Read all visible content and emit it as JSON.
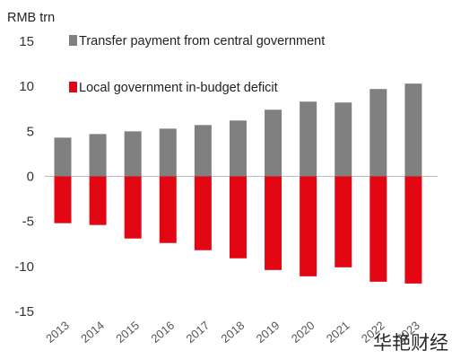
{
  "chart_data": {
    "type": "bar",
    "stacked": true,
    "unit_label": "RMB trn",
    "categories": [
      "2013",
      "2014",
      "2015",
      "2016",
      "2017",
      "2018",
      "2019",
      "2020",
      "2021",
      "2022",
      "2023"
    ],
    "series": [
      {
        "name": "Transfer payment from central government",
        "color": "#808080",
        "values": [
          4.3,
          4.7,
          5.0,
          5.3,
          5.7,
          6.2,
          7.4,
          8.3,
          8.2,
          9.7,
          10.3
        ]
      },
      {
        "name": "Local government in-budget deficit",
        "color": "#e30613",
        "values": [
          -5.2,
          -5.4,
          -6.9,
          -7.4,
          -8.2,
          -9.1,
          -10.4,
          -11.1,
          -10.1,
          -11.7,
          -11.9
        ]
      }
    ],
    "ylim": [
      -15,
      15
    ],
    "yticks": [
      15,
      10,
      5,
      0,
      -5,
      -10,
      -15
    ],
    "legend_position": "top-left",
    "grid": false
  },
  "watermark": "华艳财经"
}
